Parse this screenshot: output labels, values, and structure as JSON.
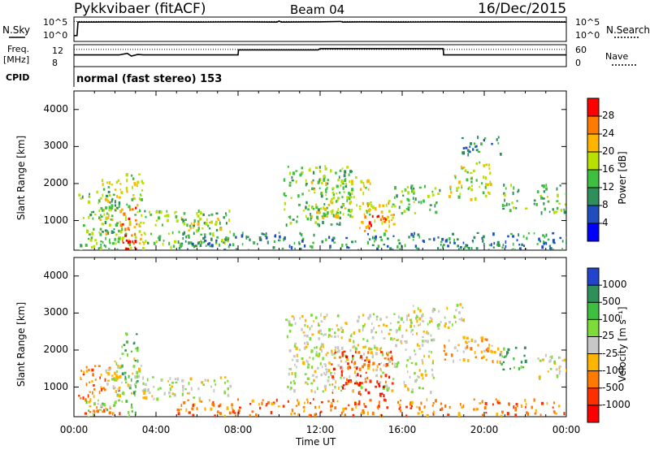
{
  "header": {
    "station": "Pykkvibaer (fitACF)",
    "beam": "Beam 04",
    "date": "16/Dec/2015"
  },
  "chart_data": [
    {
      "type": "line",
      "panel": "noise",
      "left_label": "N.Sky",
      "right_label": "N.Search",
      "left_ticks": [
        "10^5",
        "10^0"
      ],
      "right_ticks": [
        "10^5",
        "10^0"
      ],
      "x_range_hours": [
        0,
        24
      ],
      "series": [
        {
          "values": [
            [
              0.0,
              1.0
            ],
            [
              0.15,
              1.0
            ],
            [
              0.2,
              4.2
            ],
            [
              1.0,
              4.2
            ],
            [
              2.0,
              4.25
            ],
            [
              3.0,
              4.2
            ],
            [
              4.0,
              4.25
            ],
            [
              6.0,
              4.2
            ],
            [
              8.0,
              4.25
            ],
            [
              9.9,
              4.2
            ],
            [
              10.0,
              4.45
            ],
            [
              10.1,
              4.2
            ],
            [
              12.0,
              4.25
            ],
            [
              13.0,
              4.35
            ],
            [
              13.1,
              4.2
            ],
            [
              14.0,
              4.25
            ],
            [
              16.0,
              4.2
            ],
            [
              18.0,
              4.25
            ],
            [
              20.0,
              4.2
            ],
            [
              22.0,
              4.25
            ],
            [
              24.0,
              4.2
            ]
          ]
        },
        {
          "values": [
            [
              0,
              4.35
            ],
            [
              24,
              4.35
            ]
          ]
        }
      ]
    },
    {
      "type": "line",
      "panel": "frequency",
      "left_label": "Freq.",
      "left_unit": "[MHz]",
      "right_label": "Nave",
      "left_ticks": [
        "12",
        "8"
      ],
      "right_ticks": [
        "60",
        "0"
      ],
      "x_range_hours": [
        0,
        24
      ],
      "series": [
        {
          "values": [
            [
              0.0,
              10.2
            ],
            [
              2.2,
              10.2
            ],
            [
              2.6,
              10.6
            ],
            [
              2.8,
              9.9
            ],
            [
              3.1,
              10.3
            ],
            [
              3.4,
              10.2
            ],
            [
              8.0,
              10.2
            ],
            [
              8.02,
              11.5
            ],
            [
              11.9,
              11.5
            ],
            [
              12.0,
              11.8
            ],
            [
              18.0,
              11.8
            ],
            [
              18.02,
              10.2
            ],
            [
              24.0,
              10.2
            ]
          ]
        },
        {
          "values": [
            [
              0,
              11.6
            ],
            [
              24,
              11.6
            ]
          ]
        }
      ]
    },
    {
      "type": "heatmap",
      "panel": "power",
      "cpid_label": "CPID",
      "cpid_text": "normal (fast stereo) 153",
      "ylabel": "Slant Range [km]",
      "xlabel": "",
      "ylim": [
        200,
        4500
      ],
      "yticks": [
        "1000",
        "2000",
        "3000",
        "4000"
      ],
      "x_range_hours": [
        0,
        24
      ],
      "colorbar": {
        "label": "Power [dB]",
        "ticks": [
          "28",
          "24",
          "20",
          "16",
          "12",
          "8",
          "4"
        ],
        "colors": [
          "#ff0000",
          "#ff7a00",
          "#ffb400",
          "#b8e000",
          "#3fbf3f",
          "#2f8f5a",
          "#1f4fbf",
          "#0000ff"
        ]
      },
      "regions": [
        {
          "t": [
            0.2,
            2.2
          ],
          "r": [
            200,
            1900
          ],
          "level": 3
        },
        {
          "t": [
            1.2,
            3.4
          ],
          "r": [
            200,
            2300
          ],
          "level": 4
        },
        {
          "t": [
            2.2,
            3.1
          ],
          "r": [
            600,
            1400
          ],
          "level": 6
        },
        {
          "t": [
            2.3,
            3.0
          ],
          "r": [
            250,
            500
          ],
          "level": 7
        },
        {
          "t": [
            3.4,
            7.6
          ],
          "r": [
            300,
            1300
          ],
          "level": 3
        },
        {
          "t": [
            5.5,
            7.2
          ],
          "r": [
            600,
            1100
          ],
          "level": 4
        },
        {
          "t": [
            10.2,
            13.5
          ],
          "r": [
            900,
            2500
          ],
          "level": 3
        },
        {
          "t": [
            11.5,
            14.5
          ],
          "r": [
            1100,
            2200
          ],
          "level": 4
        },
        {
          "t": [
            13.8,
            15.6
          ],
          "r": [
            700,
            1600
          ],
          "level": 5
        },
        {
          "t": [
            14.2,
            15.2
          ],
          "r": [
            800,
            1200
          ],
          "level": 7
        },
        {
          "t": [
            15.5,
            17.8
          ],
          "r": [
            1200,
            2000
          ],
          "level": 3
        },
        {
          "t": [
            18.2,
            20.3
          ],
          "r": [
            1600,
            2600
          ],
          "level": 4
        },
        {
          "t": [
            18.8,
            20.8
          ],
          "r": [
            2800,
            3300
          ],
          "level": 2
        },
        {
          "t": [
            20.8,
            22.0
          ],
          "r": [
            1300,
            2000
          ],
          "level": 3
        },
        {
          "t": [
            22.4,
            24.0
          ],
          "r": [
            1200,
            2000
          ],
          "level": 3
        },
        {
          "t": [
            5.0,
            24.0
          ],
          "r": [
            200,
            700
          ],
          "level": 2
        }
      ]
    },
    {
      "type": "heatmap",
      "panel": "velocity",
      "ylabel": "Slant Range [km]",
      "xlabel": "Time UT",
      "ylim": [
        200,
        4500
      ],
      "yticks": [
        "1000",
        "2000",
        "3000",
        "4000"
      ],
      "xticks": [
        "00:00",
        "04:00",
        "08:00",
        "12:00",
        "16:00",
        "20:00",
        "00:00"
      ],
      "x_range_hours": [
        0,
        24
      ],
      "colorbar": {
        "label": "Velocity [m s⁻¹]",
        "ticks": [
          "1000",
          "500",
          "100",
          "25",
          "-25",
          "-100",
          "-500",
          "-1000"
        ],
        "colors": [
          "#2244cc",
          "#2f8f5a",
          "#3fbf3f",
          "#7ddc3a",
          "#c8c8c8",
          "#ffb400",
          "#ff7a00",
          "#ff3000",
          "#ff0000"
        ]
      },
      "regions": [
        {
          "t": [
            0.2,
            2.2
          ],
          "r": [
            300,
            1600
          ],
          "level": 2
        },
        {
          "t": [
            1.5,
            3.5
          ],
          "r": [
            800,
            1800
          ],
          "level": 4
        },
        {
          "t": [
            2.3,
            3.1
          ],
          "r": [
            800,
            2500
          ],
          "level": 6
        },
        {
          "t": [
            3.3,
            7.6
          ],
          "r": [
            700,
            1300
          ],
          "level": 4
        },
        {
          "t": [
            0.5,
            3.0
          ],
          "r": [
            200,
            700
          ],
          "level": 5
        },
        {
          "t": [
            10.3,
            17.5
          ],
          "r": [
            900,
            3000
          ],
          "level": 4
        },
        {
          "t": [
            12.5,
            15.5
          ],
          "r": [
            800,
            2000
          ],
          "level": 1
        },
        {
          "t": [
            16.5,
            19.0
          ],
          "r": [
            2600,
            3300
          ],
          "level": 4
        },
        {
          "t": [
            18.0,
            21.0
          ],
          "r": [
            1700,
            2400
          ],
          "level": 3
        },
        {
          "t": [
            20.5,
            22.0
          ],
          "r": [
            1500,
            2100
          ],
          "level": 6
        },
        {
          "t": [
            22.5,
            24.0
          ],
          "r": [
            1200,
            1900
          ],
          "level": 4
        },
        {
          "t": [
            5.0,
            24.0
          ],
          "r": [
            250,
            700
          ],
          "level": 2
        }
      ]
    }
  ]
}
